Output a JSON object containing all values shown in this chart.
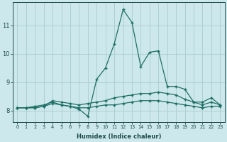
{
  "xlabel": "Humidex (Indice chaleur)",
  "background_color": "#cde8ec",
  "grid_color": "#a8cccc",
  "line_color": "#1e6e65",
  "xlim": [
    -0.5,
    23.5
  ],
  "ylim": [
    7.6,
    11.8
  ],
  "yticks": [
    8,
    9,
    10,
    11
  ],
  "xticks": [
    0,
    1,
    2,
    3,
    4,
    5,
    6,
    7,
    8,
    9,
    10,
    11,
    12,
    13,
    14,
    15,
    16,
    17,
    18,
    19,
    20,
    21,
    22,
    23
  ],
  "series": [
    {
      "x": [
        0,
        1,
        2,
        3,
        4,
        5,
        6,
        7,
        8,
        9,
        10,
        11,
        12,
        13,
        14,
        15,
        16,
        17,
        18,
        19,
        20,
        21,
        22,
        23
      ],
      "y": [
        8.1,
        8.1,
        8.15,
        8.2,
        8.3,
        8.2,
        8.15,
        8.05,
        7.8,
        9.1,
        9.5,
        10.35,
        11.55,
        11.1,
        9.55,
        10.05,
        10.1,
        8.85,
        8.85,
        8.75,
        8.3,
        8.3,
        8.45,
        8.2
      ]
    },
    {
      "x": [
        0,
        1,
        2,
        3,
        4,
        5,
        6,
        7,
        8,
        9,
        10,
        11,
        12,
        13,
        14,
        15,
        16,
        17,
        18,
        19,
        20,
        21,
        22,
        23
      ],
      "y": [
        8.1,
        8.1,
        8.1,
        8.15,
        8.35,
        8.3,
        8.25,
        8.2,
        8.25,
        8.3,
        8.35,
        8.45,
        8.5,
        8.55,
        8.6,
        8.6,
        8.65,
        8.6,
        8.55,
        8.4,
        8.3,
        8.2,
        8.3,
        8.2
      ]
    },
    {
      "x": [
        0,
        1,
        2,
        3,
        4,
        5,
        6,
        7,
        8,
        9,
        10,
        11,
        12,
        13,
        14,
        15,
        16,
        17,
        18,
        19,
        20,
        21,
        22,
        23
      ],
      "y": [
        8.1,
        8.1,
        8.1,
        8.15,
        8.25,
        8.2,
        8.15,
        8.1,
        8.1,
        8.15,
        8.2,
        8.2,
        8.25,
        8.3,
        8.35,
        8.35,
        8.35,
        8.3,
        8.25,
        8.2,
        8.15,
        8.1,
        8.15,
        8.15
      ]
    }
  ]
}
